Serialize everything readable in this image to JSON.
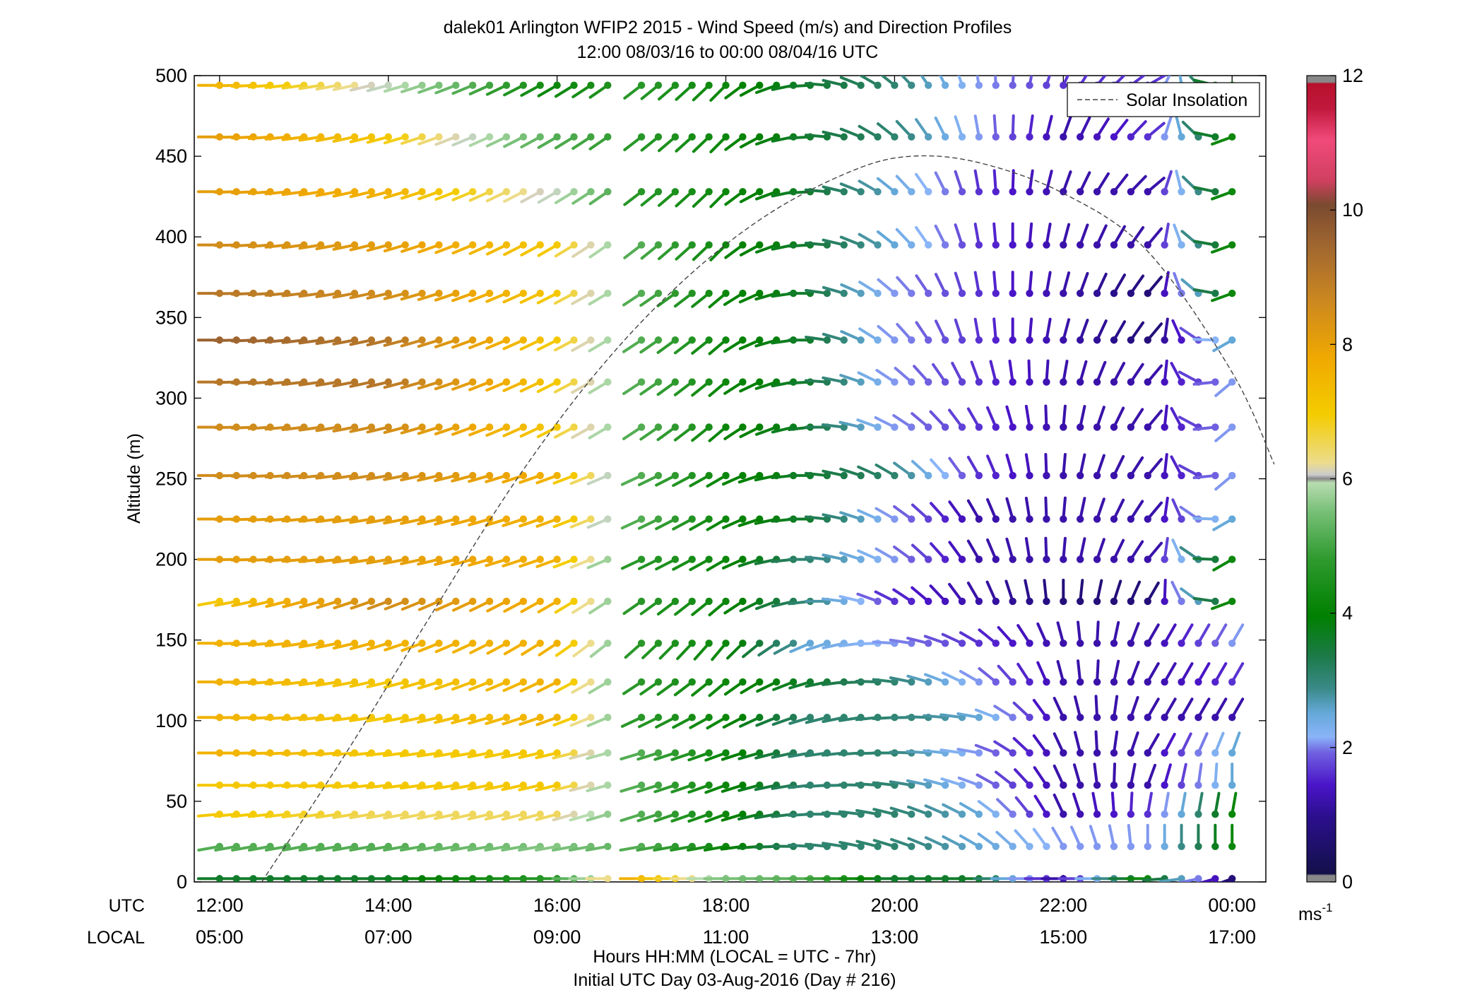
{
  "figure": {
    "title_line1": "dalek01 Arlington WFIP2 2015 - Wind Speed (m/s) and Direction Profiles",
    "title_line2": "12:00 08/03/16 to 00:00 08/04/16  UTC",
    "xlabel_line1": "Hours HH:MM  (LOCAL = UTC - 7hr)",
    "xlabel_line2": "Initial UTC Day 03-Aug-2016 (Day # 216)",
    "ylabel": "Altitude (m)",
    "utc_label": "UTC",
    "local_label": "LOCAL",
    "legend_label": "Solar Insolation",
    "colorbar_unit": "ms",
    "colorbar_unit_exp": "-1"
  },
  "chart_data": {
    "type": "scatter",
    "xlim": [
      -0.3,
      12.4
    ],
    "ylim": [
      0,
      500
    ],
    "y_ticks": [
      "0",
      "50",
      "100",
      "150",
      "200",
      "250",
      "300",
      "350",
      "400",
      "450",
      "500"
    ],
    "x_ticks_utc": [
      "12:00",
      "14:00",
      "16:00",
      "18:00",
      "20:00",
      "22:00",
      "00:00"
    ],
    "x_ticks_local": [
      "05:00",
      "07:00",
      "09:00",
      "11:00",
      "13:00",
      "15:00",
      "17:00"
    ],
    "x_tick_hours": [
      0,
      2,
      4,
      6,
      8,
      10,
      12
    ],
    "colorbar": {
      "min": 0,
      "max": 12,
      "ticks": [
        "0",
        "2",
        "4",
        "6",
        "8",
        "10",
        "12"
      ]
    },
    "altitudes": [
      2,
      22,
      42,
      60,
      80,
      102,
      124,
      148,
      174,
      200,
      225,
      252,
      282,
      310,
      336,
      365,
      395,
      428,
      462,
      494
    ],
    "times_hours": [
      0,
      0.2,
      0.4,
      0.6,
      0.8,
      1,
      1.2,
      1.4,
      1.6,
      1.8,
      2,
      2.2,
      2.4,
      2.6,
      2.8,
      3,
      3.2,
      3.4,
      3.6,
      3.8,
      4,
      4.2,
      4.4,
      4.6,
      4.8,
      5,
      5.2,
      5.4,
      5.6,
      5.8,
      6,
      6.2,
      6.4,
      6.6,
      6.8,
      7,
      7.2,
      7.4,
      7.6,
      7.8,
      8,
      8.2,
      8.4,
      8.6,
      8.8,
      9,
      9.2,
      9.4,
      9.6,
      9.8,
      10,
      10.2,
      10.4,
      10.6,
      10.8,
      11,
      11.2,
      11.4,
      11.6,
      11.8,
      12
    ],
    "data_gap_hours": [
      4.65,
      4.95
    ],
    "wind_speed_profile": [
      {
        "hour": 0,
        "speeds": [
          3.5,
          5,
          7,
          7,
          7.5,
          7.5,
          7.5,
          7.5,
          7,
          8,
          8,
          8.5,
          8.5,
          9,
          9.5,
          9,
          8.5,
          8,
          8,
          7.5
        ]
      },
      {
        "hour": 2,
        "speeds": [
          3.5,
          5,
          6.5,
          7,
          7,
          7,
          7,
          7.5,
          8.5,
          8,
          8,
          8.5,
          8.5,
          9,
          9,
          8.5,
          8,
          7.5,
          7,
          6
        ]
      },
      {
        "hour": 4,
        "speeds": [
          4.5,
          5.5,
          6.5,
          7,
          7,
          7.5,
          7.5,
          7.5,
          7.5,
          7.5,
          7.5,
          7.5,
          7,
          7,
          7,
          7,
          7,
          6,
          5,
          4
        ]
      },
      {
        "hour": 5,
        "speeds": [
          7.5,
          5,
          5,
          5,
          5,
          4.5,
          4.5,
          4.5,
          4.5,
          4.5,
          5,
          5,
          5,
          5,
          5,
          5,
          5,
          4.5,
          4.5,
          4.5
        ]
      },
      {
        "hour": 6,
        "speeds": [
          5.5,
          4,
          4,
          4,
          4,
          4,
          4,
          4,
          4,
          4,
          4,
          4,
          4,
          4,
          4,
          4,
          4,
          4,
          4,
          4
        ]
      },
      {
        "hour": 7,
        "speeds": [
          5,
          3,
          3,
          3,
          3,
          3,
          3.5,
          2.5,
          3,
          3,
          3.5,
          3.5,
          3.5,
          3.5,
          3.5,
          3.5,
          3.5,
          3.5,
          3.5,
          3.5
        ]
      },
      {
        "hour": 8,
        "speeds": [
          3.5,
          3,
          3,
          3,
          3,
          3,
          3,
          2,
          1.5,
          2,
          2,
          3,
          2,
          2,
          2,
          2,
          2.5,
          2.5,
          3,
          3
        ]
      },
      {
        "hour": 9,
        "speeds": [
          3.5,
          2.5,
          2.5,
          2,
          2,
          2.5,
          2,
          1.5,
          1,
          1,
          1,
          1.5,
          1.5,
          1.5,
          1.5,
          1.5,
          1.5,
          1.5,
          2,
          2
        ]
      },
      {
        "hour": 10,
        "speeds": [
          1,
          2,
          1,
          1,
          1,
          1,
          1,
          1,
          0.5,
          1,
          1,
          1,
          1,
          1,
          1,
          1,
          1,
          1,
          1,
          1.5
        ]
      },
      {
        "hour": 11,
        "speeds": [
          4,
          2,
          1.5,
          1,
          1,
          1,
          1,
          1,
          0.5,
          1,
          1,
          1,
          1,
          1,
          0.5,
          0.5,
          1,
          1,
          1.5,
          1.5
        ]
      },
      {
        "hour": 12,
        "speeds": [
          0.5,
          4,
          4,
          2.5,
          2.5,
          1,
          1.5,
          2,
          4,
          4,
          2.5,
          2,
          2,
          2,
          2.5,
          4,
          4,
          4,
          4,
          4
        ]
      }
    ],
    "wind_direction_profile": [
      {
        "hour": 0,
        "dirs_deg": [
          270,
          260,
          265,
          270,
          270,
          270,
          270,
          270,
          260,
          270,
          270,
          270,
          270,
          270,
          270,
          270,
          270,
          270,
          270,
          270
        ]
      },
      {
        "hour": 6,
        "dirs_deg": [
          270,
          260,
          250,
          250,
          250,
          240,
          230,
          220,
          230,
          240,
          240,
          240,
          230,
          230,
          230,
          230,
          225,
          225,
          225,
          225
        ]
      },
      {
        "hour": 9,
        "dirs_deg": [
          270,
          300,
          300,
          290,
          280,
          280,
          300,
          300,
          330,
          330,
          330,
          330,
          330,
          340,
          350,
          350,
          350,
          350,
          350,
          350
        ]
      },
      {
        "hour": 11,
        "dirs_deg": [
          270,
          0,
          10,
          20,
          30,
          30,
          30,
          30,
          30,
          40,
          40,
          40,
          40,
          40,
          40,
          40,
          40,
          50,
          50,
          60
        ]
      },
      {
        "hour": 12,
        "dirs_deg": [
          250,
          0,
          10,
          0,
          20,
          30,
          30,
          30,
          250,
          240,
          240,
          230,
          230,
          230,
          240,
          250,
          250,
          250,
          250,
          250
        ]
      }
    ],
    "solar_insolation": {
      "label": "Solar Insolation",
      "peak_hour": 8.2,
      "curve_points": [
        [
          0.5,
          0
        ],
        [
          1.5,
          80
        ],
        [
          2.5,
          165
        ],
        [
          3.5,
          248
        ],
        [
          4.5,
          318
        ],
        [
          5.5,
          373
        ],
        [
          6.5,
          414
        ],
        [
          7.5,
          441
        ],
        [
          8.2,
          450
        ],
        [
          9,
          446
        ],
        [
          10,
          427
        ],
        [
          11,
          391
        ],
        [
          12,
          316
        ],
        [
          12.5,
          259
        ]
      ]
    }
  }
}
